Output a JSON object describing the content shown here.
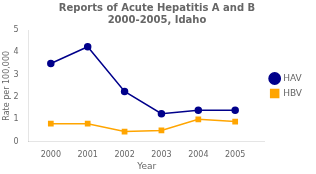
{
  "chart_data": {
    "type": "line",
    "title": "Reports of Acute Hepatitis A and B\n2000-2005, Idaho",
    "xlabel": "Year",
    "ylabel": "Rate per 100,000",
    "x": [
      2000,
      2001,
      2002,
      2003,
      2004,
      2005
    ],
    "series": [
      {
        "name": "HAV",
        "color": "#00008B",
        "marker": "circle",
        "values": [
          3.5,
          4.25,
          2.25,
          1.25,
          1.4,
          1.4
        ]
      },
      {
        "name": "HBV",
        "color": "#FFA500",
        "marker": "square",
        "values": [
          0.8,
          0.8,
          0.45,
          0.5,
          1.0,
          0.9
        ]
      }
    ],
    "xlim": [
      1999.4,
      2005.8
    ],
    "xticks": [
      2000,
      2001,
      2002,
      2003,
      2004,
      2005
    ],
    "ylim": [
      0,
      5
    ],
    "yticks": [
      0,
      1,
      2,
      3,
      4,
      5
    ],
    "grid": false,
    "legend": "right"
  }
}
